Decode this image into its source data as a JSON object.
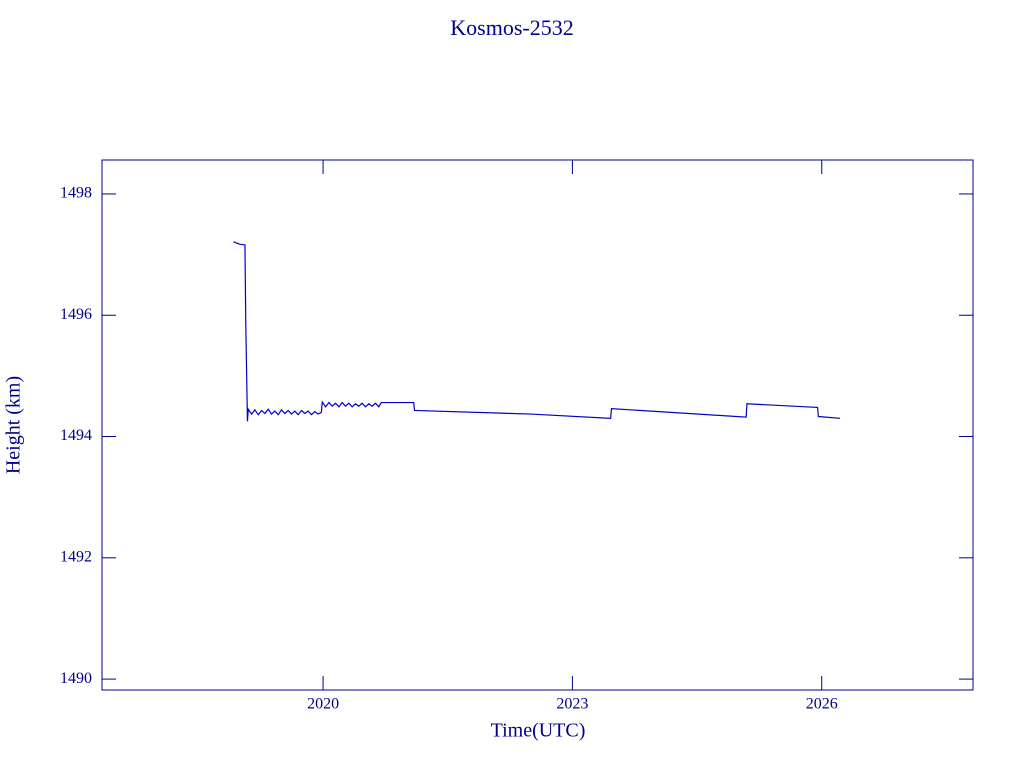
{
  "chart_data": {
    "type": "line",
    "title": "Kosmos-2532",
    "x_label": "Time(UTC)",
    "y_label": "Height (km)",
    "xlim": [
      2017.34,
      2027.82
    ],
    "xticks": [
      2020,
      2023,
      2026
    ],
    "ylim": [
      1489.82,
      1498.56
    ],
    "yticks": [
      1490,
      1492,
      1494,
      1496,
      1498
    ],
    "series": [
      {
        "color": "#0000cc",
        "x": [
          2018.92,
          2019.0,
          2019.06,
          2019.07,
          2019.09,
          2019.1,
          2019.14,
          2019.18,
          2019.22,
          2019.26,
          2019.3,
          2019.34,
          2019.38,
          2019.42,
          2019.46,
          2019.5,
          2019.54,
          2019.58,
          2019.62,
          2019.66,
          2019.7,
          2019.74,
          2019.78,
          2019.82,
          2019.86,
          2019.9,
          2019.94,
          2019.98,
          2019.99,
          2020.03,
          2020.07,
          2020.11,
          2020.15,
          2020.19,
          2020.23,
          2020.27,
          2020.31,
          2020.35,
          2020.39,
          2020.43,
          2020.47,
          2020.51,
          2020.55,
          2020.59,
          2020.63,
          2020.67,
          2020.7,
          2021.09,
          2021.1,
          2022.5,
          2023.46,
          2023.47,
          2025.09,
          2025.1,
          2025.95,
          2025.96,
          2026.22
        ],
        "values": [
          1497.21,
          1497.17,
          1497.16,
          1495.85,
          1494.25,
          1494.45,
          1494.37,
          1494.44,
          1494.36,
          1494.43,
          1494.38,
          1494.45,
          1494.37,
          1494.42,
          1494.36,
          1494.44,
          1494.38,
          1494.43,
          1494.37,
          1494.42,
          1494.36,
          1494.43,
          1494.38,
          1494.42,
          1494.36,
          1494.41,
          1494.37,
          1494.4,
          1494.57,
          1494.49,
          1494.56,
          1494.5,
          1494.55,
          1494.49,
          1494.56,
          1494.5,
          1494.55,
          1494.49,
          1494.54,
          1494.5,
          1494.55,
          1494.49,
          1494.54,
          1494.5,
          1494.55,
          1494.49,
          1494.56,
          1494.56,
          1494.43,
          1494.37,
          1494.3,
          1494.46,
          1494.32,
          1494.54,
          1494.48,
          1494.33,
          1494.3
        ]
      }
    ]
  }
}
